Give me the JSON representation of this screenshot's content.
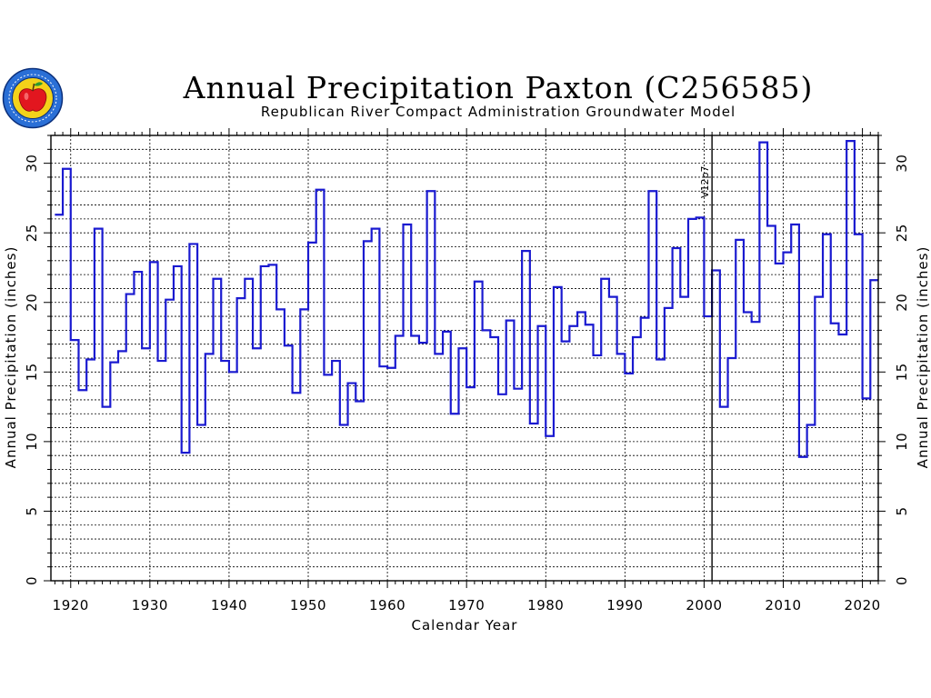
{
  "colors": {
    "series": "#1a1ad0",
    "grid": "#000000",
    "background": "#ffffff"
  },
  "logo": {
    "icon": "apple-seal-icon"
  },
  "chart_data": {
    "type": "line",
    "title": "Annual Precipitation Paxton (C256585)",
    "subtitle": "Republican River Compact Administration Groundwater Model",
    "xlabel": "Calendar Year",
    "ylabel": "Annual Precipitation (inches)",
    "ylabel_right": "Annual Precipitation (inches)",
    "xlim": [
      1917.5,
      2022.0
    ],
    "ylim": [
      0,
      32
    ],
    "xticks": [
      1920,
      1930,
      1940,
      1950,
      1960,
      1970,
      1980,
      1990,
      2000,
      2010,
      2020
    ],
    "yticks": [
      0,
      5,
      10,
      15,
      20,
      25,
      30
    ],
    "grid": true,
    "step_style": "stairs",
    "annotation": {
      "text": "V12p7",
      "x": 2001
    },
    "series": [
      {
        "x": [
          1918,
          1919,
          1920,
          1921,
          1922,
          1923,
          1924,
          1925,
          1926,
          1927,
          1928,
          1929,
          1930,
          1931,
          1932,
          1933,
          1934,
          1935,
          1936,
          1937,
          1938,
          1939,
          1940,
          1941,
          1942,
          1943,
          1944,
          1945,
          1946,
          1947,
          1948,
          1949,
          1950,
          1951,
          1952,
          1953,
          1954,
          1955,
          1956,
          1957,
          1958,
          1959,
          1960,
          1961,
          1962,
          1963,
          1964,
          1965,
          1966,
          1967,
          1968,
          1969,
          1970,
          1971,
          1972,
          1973,
          1974,
          1975,
          1976,
          1977,
          1978,
          1979,
          1980,
          1981,
          1982,
          1983,
          1984,
          1985,
          1986,
          1987,
          1988,
          1989,
          1990,
          1991,
          1992,
          1993,
          1994,
          1995,
          1996,
          1997,
          1998,
          1999,
          2000,
          2001,
          2002,
          2003,
          2004,
          2005,
          2006,
          2007,
          2008,
          2009,
          2010,
          2011,
          2012,
          2013,
          2014,
          2015,
          2016,
          2017,
          2018,
          2019,
          2020,
          2021
        ],
        "values": [
          26.3,
          29.6,
          17.3,
          13.7,
          15.9,
          25.3,
          12.5,
          15.7,
          16.5,
          20.6,
          22.2,
          16.7,
          22.9,
          15.8,
          20.2,
          22.6,
          9.2,
          24.2,
          11.2,
          16.3,
          21.7,
          15.8,
          15.0,
          20.3,
          21.7,
          16.7,
          22.6,
          22.7,
          19.5,
          16.9,
          13.5,
          19.5,
          24.3,
          28.1,
          14.8,
          15.8,
          11.2,
          14.2,
          12.9,
          24.4,
          25.3,
          15.4,
          15.3,
          17.6,
          25.6,
          17.6,
          17.1,
          28.0,
          16.3,
          17.9,
          12.0,
          16.7,
          13.9,
          21.5,
          18.0,
          17.5,
          13.4,
          18.7,
          13.8,
          23.7,
          11.3,
          18.3,
          10.4,
          21.1,
          17.2,
          18.3,
          19.3,
          18.4,
          16.2,
          21.7,
          20.4,
          16.3,
          14.9,
          17.5,
          18.9,
          28.0,
          15.9,
          19.6,
          23.9,
          20.4,
          26.0,
          26.1,
          19.0,
          22.3,
          12.5,
          16.0,
          24.5,
          19.3,
          18.6,
          31.5,
          25.5,
          22.8,
          23.6,
          25.6,
          8.9,
          11.2,
          20.4,
          24.9,
          18.5,
          17.7,
          31.6,
          24.9,
          13.1,
          21.6
        ]
      }
    ]
  }
}
